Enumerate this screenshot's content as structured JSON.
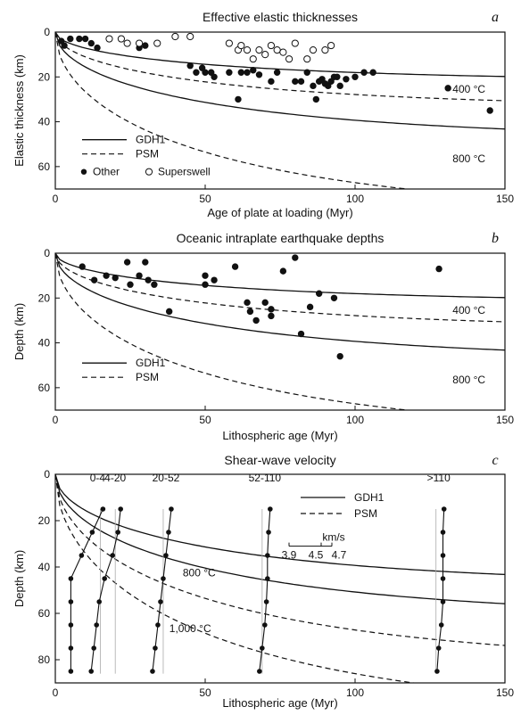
{
  "chart_data": [
    {
      "type": "scatter",
      "panel": "a",
      "title": "Effective elastic thicknesses",
      "xlabel": "Age of plate at loading (Myr)",
      "ylabel": "Elastic thickness (km)",
      "xlim": [
        0,
        150
      ],
      "ylim": [
        0,
        70
      ],
      "y_inverted": true,
      "xticks": [
        "0",
        "50",
        "100",
        "150"
      ],
      "yticks": [
        "0",
        "20",
        "40",
        "60"
      ],
      "legend": [
        "GDH1",
        "PSM",
        "Other",
        "Superswell"
      ],
      "isotherm_labels": [
        "400 °C",
        "800 °C"
      ],
      "series": [
        {
          "name": "Other",
          "marker": "filled-circle",
          "points": [
            [
              2,
              4
            ],
            [
              3,
              6
            ],
            [
              5,
              3
            ],
            [
              8,
              3
            ],
            [
              10,
              3
            ],
            [
              12,
              5
            ],
            [
              14,
              7
            ],
            [
              28,
              7
            ],
            [
              30,
              6
            ],
            [
              45,
              15
            ],
            [
              47,
              18
            ],
            [
              49,
              16
            ],
            [
              50,
              18
            ],
            [
              52,
              18
            ],
            [
              53,
              20
            ],
            [
              58,
              18
            ],
            [
              61,
              30
            ],
            [
              62,
              18
            ],
            [
              64,
              18
            ],
            [
              66,
              17
            ],
            [
              68,
              19
            ],
            [
              72,
              22
            ],
            [
              74,
              18
            ],
            [
              80,
              22
            ],
            [
              82,
              22
            ],
            [
              84,
              18
            ],
            [
              86,
              24
            ],
            [
              87,
              30
            ],
            [
              88,
              22
            ],
            [
              89,
              21
            ],
            [
              90,
              23
            ],
            [
              91,
              24
            ],
            [
              92,
              22
            ],
            [
              93,
              20
            ],
            [
              94,
              20
            ],
            [
              95,
              24
            ],
            [
              97,
              21
            ],
            [
              100,
              20
            ],
            [
              103,
              18
            ],
            [
              106,
              18
            ],
            [
              131,
              25
            ],
            [
              145,
              35
            ]
          ]
        },
        {
          "name": "Superswell",
          "marker": "open-circle",
          "points": [
            [
              18,
              3
            ],
            [
              22,
              3
            ],
            [
              24,
              5
            ],
            [
              28,
              5
            ],
            [
              34,
              5
            ],
            [
              40,
              2
            ],
            [
              45,
              2
            ],
            [
              58,
              5
            ],
            [
              61,
              8
            ],
            [
              62,
              6
            ],
            [
              64,
              8
            ],
            [
              66,
              12
            ],
            [
              68,
              8
            ],
            [
              70,
              10
            ],
            [
              72,
              6
            ],
            [
              74,
              8
            ],
            [
              76,
              9
            ],
            [
              78,
              12
            ],
            [
              80,
              5
            ],
            [
              84,
              12
            ],
            [
              86,
              8
            ],
            [
              90,
              8
            ],
            [
              92,
              6
            ]
          ]
        }
      ],
      "curves": [
        {
          "name": "GDH1",
          "isotherm": "400 °C",
          "style": "solid",
          "asymptote": 22
        },
        {
          "name": "PSM",
          "isotherm": "400 °C",
          "style": "dashed",
          "asymptote": 34
        },
        {
          "name": "GDH1",
          "isotherm": "800 °C",
          "style": "solid",
          "asymptote": 48
        },
        {
          "name": "PSM",
          "isotherm": "800 °C",
          "style": "dashed",
          "asymptote": 82
        }
      ]
    },
    {
      "type": "scatter",
      "panel": "b",
      "title": "Oceanic intraplate earthquake depths",
      "xlabel": "Lithospheric age (Myr)",
      "ylabel": "Depth (km)",
      "xlim": [
        0,
        150
      ],
      "ylim": [
        0,
        70
      ],
      "y_inverted": true,
      "xticks": [
        "0",
        "50",
        "100",
        "150"
      ],
      "yticks": [
        "0",
        "20",
        "40",
        "60"
      ],
      "legend": [
        "GDH1",
        "PSM"
      ],
      "isotherm_labels": [
        "400 °C",
        "800 °C"
      ],
      "series": [
        {
          "name": "earthquakes",
          "marker": "filled-circle",
          "points": [
            [
              9,
              6
            ],
            [
              13,
              12
            ],
            [
              17,
              10
            ],
            [
              20,
              11
            ],
            [
              24,
              4
            ],
            [
              25,
              14
            ],
            [
              28,
              10
            ],
            [
              30,
              4
            ],
            [
              31,
              12
            ],
            [
              33,
              14
            ],
            [
              38,
              26
            ],
            [
              50,
              10
            ],
            [
              50,
              14
            ],
            [
              53,
              12
            ],
            [
              60,
              6
            ],
            [
              64,
              22
            ],
            [
              65,
              26
            ],
            [
              67,
              30
            ],
            [
              70,
              22
            ],
            [
              72,
              25
            ],
            [
              72,
              28
            ],
            [
              76,
              8
            ],
            [
              80,
              2
            ],
            [
              82,
              36
            ],
            [
              85,
              24
            ],
            [
              88,
              18
            ],
            [
              93,
              20
            ],
            [
              95,
              46
            ],
            [
              128,
              7
            ]
          ]
        }
      ],
      "curves": [
        {
          "name": "GDH1",
          "isotherm": "400 °C",
          "style": "solid",
          "asymptote": 22
        },
        {
          "name": "PSM",
          "isotherm": "400 °C",
          "style": "dashed",
          "asymptote": 34
        },
        {
          "name": "GDH1",
          "isotherm": "800 °C",
          "style": "solid",
          "asymptote": 48
        },
        {
          "name": "PSM",
          "isotherm": "800 °C",
          "style": "dashed",
          "asymptote": 82
        }
      ]
    },
    {
      "type": "line",
      "panel": "c",
      "title": "Shear-wave velocity",
      "xlabel": "Lithospheric age (Myr)",
      "ylabel": "Depth (km)",
      "xlim": [
        0,
        150
      ],
      "ylim": [
        0,
        90
      ],
      "y_inverted": true,
      "xticks": [
        "0",
        "50",
        "100",
        "150"
      ],
      "yticks": [
        "0",
        "20",
        "40",
        "60",
        "80"
      ],
      "legend": [
        "GDH1",
        "PSM"
      ],
      "isotherm_labels": [
        "800 °C",
        "1,000 °C"
      ],
      "velocity_scale": {
        "unit": "km/s",
        "ticks": [
          "3.9",
          "4.5",
          "4.7"
        ]
      },
      "profile_depths": [
        15,
        25,
        35,
        45,
        55,
        65,
        75,
        85
      ],
      "profiles": [
        {
          "label": "0-4",
          "ref_age": 15,
          "velocity": [
            4.55,
            4.35,
            4.15,
            3.95,
            3.95,
            3.95,
            3.95,
            3.95
          ]
        },
        {
          "label": "4-20",
          "ref_age": 20,
          "velocity": [
            4.6,
            4.55,
            4.45,
            4.3,
            4.2,
            4.15,
            4.1,
            4.05
          ]
        },
        {
          "label": "20-52",
          "ref_age": 36,
          "velocity": [
            4.65,
            4.6,
            4.55,
            4.5,
            4.45,
            4.4,
            4.35,
            4.3
          ]
        },
        {
          "label": "52-110",
          "ref_age": 69,
          "velocity": [
            4.65,
            4.62,
            4.6,
            4.6,
            4.58,
            4.55,
            4.5,
            4.45
          ]
        },
        {
          "label": ">110",
          "ref_age": 127,
          "velocity": [
            4.65,
            4.63,
            4.63,
            4.63,
            4.63,
            4.6,
            4.55,
            4.52
          ]
        }
      ],
      "curves": [
        {
          "name": "GDH1",
          "isotherm": "800 °C",
          "style": "solid",
          "asymptote": 48
        },
        {
          "name": "PSM",
          "isotherm": "800 °C",
          "style": "dashed",
          "asymptote": 82
        },
        {
          "name": "GDH1",
          "isotherm": "1,000 °C",
          "style": "solid",
          "asymptote": 62
        },
        {
          "name": "PSM",
          "isotherm": "1,000 °C",
          "style": "dashed",
          "asymptote": 105
        }
      ]
    }
  ]
}
